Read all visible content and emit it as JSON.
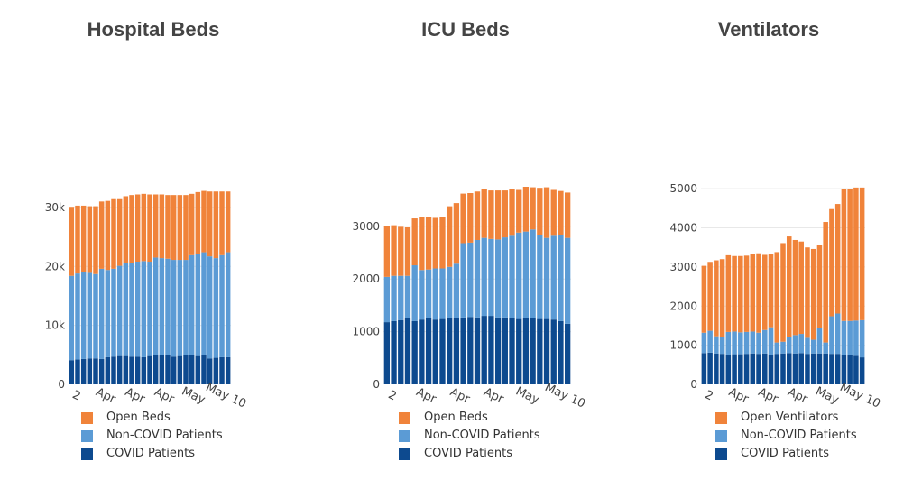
{
  "colors": {
    "open": "#f0833a",
    "noncovid": "#5b9bd5",
    "covid": "#0d4a8f",
    "grid": "#e8e8e8",
    "tick_text": "#444444"
  },
  "chart_data": [
    {
      "type": "bar",
      "stacked": true,
      "title": "Hospital Beds",
      "x_tick_labels": [
        "2",
        "Apr",
        "Apr",
        "Apr",
        "May",
        "May 10"
      ],
      "y_tick_labels": [
        "0",
        "10k",
        "20k",
        "30k"
      ],
      "y_ticks": [
        0,
        10000,
        20000,
        30000
      ],
      "ylim": [
        0,
        33500
      ],
      "grid": true,
      "legend_placement": "bottom",
      "series": [
        {
          "name": "COVID Patients",
          "color_key": "covid",
          "values": [
            4100,
            4200,
            4300,
            4400,
            4400,
            4300,
            4600,
            4700,
            4800,
            4800,
            4700,
            4700,
            4600,
            4800,
            5000,
            4900,
            4900,
            4700,
            4800,
            4900,
            4900,
            4800,
            4900,
            4400,
            4500,
            4600,
            4600
          ]
        },
        {
          "name": "Non-COVID Patients",
          "color_key": "noncovid",
          "values": [
            14300,
            14600,
            14700,
            14500,
            14300,
            15300,
            14800,
            14900,
            15300,
            15700,
            15800,
            16100,
            16300,
            16000,
            16500,
            16500,
            16400,
            16400,
            16300,
            16200,
            17000,
            17300,
            17500,
            17300,
            16900,
            17300,
            17800
          ]
        },
        {
          "name": "Open Beds",
          "color_key": "open",
          "values": [
            11700,
            11500,
            11300,
            11300,
            11500,
            11400,
            11700,
            11800,
            11300,
            11400,
            11600,
            11400,
            11400,
            11400,
            10700,
            10800,
            10800,
            11000,
            11000,
            11000,
            10400,
            10500,
            10400,
            11000,
            11300,
            10800,
            10300
          ]
        }
      ]
    },
    {
      "type": "bar",
      "stacked": true,
      "title": "ICU Beds",
      "x_tick_labels": [
        "2",
        "Apr",
        "Apr",
        "Apr",
        "May",
        "May 10"
      ],
      "y_tick_labels": [
        "0",
        "1000",
        "2000",
        "3000"
      ],
      "y_ticks": [
        0,
        1000,
        2000,
        3000
      ],
      "ylim": [
        0,
        3750
      ],
      "grid": true,
      "legend_placement": "bottom",
      "series": [
        {
          "name": "COVID Patients",
          "color_key": "covid",
          "values": [
            1180,
            1200,
            1220,
            1260,
            1200,
            1230,
            1250,
            1230,
            1240,
            1260,
            1250,
            1270,
            1280,
            1270,
            1300,
            1300,
            1270,
            1270,
            1260,
            1240,
            1250,
            1260,
            1240,
            1240,
            1230,
            1200,
            1150
          ]
        },
        {
          "name": "Non-COVID Patients",
          "color_key": "noncovid",
          "values": [
            860,
            860,
            840,
            800,
            1060,
            940,
            930,
            970,
            960,
            970,
            1040,
            1410,
            1410,
            1470,
            1480,
            1460,
            1480,
            1520,
            1560,
            1640,
            1650,
            1680,
            1600,
            1540,
            1590,
            1640,
            1630
          ]
        },
        {
          "name": "Open Beds",
          "color_key": "open",
          "values": [
            960,
            960,
            930,
            920,
            890,
            1000,
            1000,
            960,
            970,
            1150,
            1150,
            940,
            940,
            920,
            930,
            920,
            930,
            890,
            890,
            810,
            850,
            800,
            890,
            960,
            870,
            830,
            860
          ]
        }
      ]
    },
    {
      "type": "bar",
      "stacked": true,
      "title": "Ventilators",
      "x_tick_labels": [
        "2",
        "Apr",
        "Apr",
        "Apr",
        "May",
        "May 10"
      ],
      "y_tick_labels": [
        "0",
        "1000",
        "2000",
        "3000",
        "4000",
        "5000"
      ],
      "y_ticks": [
        0,
        1000,
        2000,
        3000,
        4000,
        5000
      ],
      "ylim": [
        0,
        5050
      ],
      "grid": true,
      "legend_placement": "bottom",
      "series": [
        {
          "name": "COVID Patients",
          "color_key": "covid",
          "values": [
            800,
            810,
            790,
            780,
            760,
            770,
            770,
            780,
            790,
            780,
            790,
            760,
            780,
            790,
            800,
            790,
            800,
            780,
            790,
            790,
            790,
            780,
            780,
            760,
            760,
            730,
            690
          ]
        },
        {
          "name": "Non-COVID Patients",
          "color_key": "noncovid",
          "values": [
            520,
            560,
            440,
            420,
            580,
            580,
            560,
            560,
            560,
            540,
            600,
            700,
            290,
            300,
            400,
            470,
            490,
            410,
            350,
            650,
            280,
            960,
            1030,
            860,
            860,
            900,
            950
          ]
        },
        {
          "name": "Open Ventilators",
          "color_key": "open",
          "values": [
            1710,
            1760,
            1940,
            2000,
            1960,
            1930,
            1950,
            1950,
            1980,
            2030,
            1920,
            1860,
            2310,
            2520,
            2580,
            2430,
            2360,
            2310,
            2320,
            2120,
            3080,
            2740,
            2800,
            3370,
            3370,
            3400,
            3390
          ]
        }
      ]
    }
  ]
}
